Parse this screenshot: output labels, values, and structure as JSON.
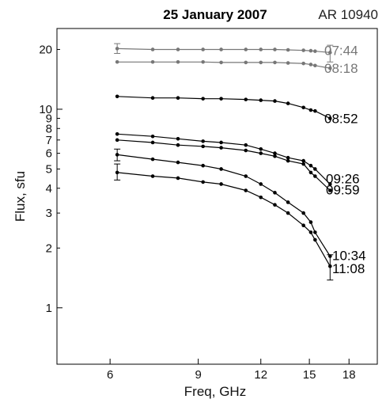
{
  "chart_data": {
    "type": "line",
    "title": "25 January 2007",
    "annotation": "AR 10940",
    "xlabel": "Freq, GHz",
    "ylabel": "Flux, sfu",
    "xscale": "log",
    "yscale": "log",
    "xlim": [
      4.7,
      20.5
    ],
    "ylim": [
      0.52,
      25.5
    ],
    "xticks": [
      6,
      9,
      12,
      15,
      18
    ],
    "xtick_labels": [
      "6",
      "9",
      "12",
      "15",
      "18"
    ],
    "yticks": [
      1,
      2,
      3,
      4,
      5,
      6,
      7,
      8,
      9,
      10,
      20
    ],
    "ytick_labels": [
      "1",
      "2",
      "3",
      "4",
      "5",
      "6",
      "7",
      "8",
      "9",
      "10",
      "20"
    ],
    "grid": false,
    "x": [
      6.2,
      7.3,
      8.2,
      9.2,
      10.0,
      11.2,
      12.0,
      12.8,
      13.6,
      14.6,
      15.1,
      15.4,
      16.5
    ],
    "series": [
      {
        "name": "07:44",
        "color": "#777777",
        "values": [
          20.2,
          20.0,
          20.0,
          20.0,
          20.0,
          20.0,
          20.0,
          20.0,
          19.9,
          19.8,
          19.7,
          19.6,
          19.3
        ],
        "errorbars": [
          {
            "index": 0,
            "low": 19.1,
            "high": 21.4
          },
          {
            "index": 12,
            "low": 17.3,
            "high": 21.0
          }
        ]
      },
      {
        "name": "08:18",
        "color": "#777777",
        "values": [
          17.3,
          17.3,
          17.3,
          17.3,
          17.2,
          17.2,
          17.2,
          17.2,
          17.1,
          17.0,
          16.8,
          16.6,
          16.1
        ],
        "errorbars": []
      },
      {
        "name": "08:52",
        "color": "#000000",
        "values": [
          11.6,
          11.4,
          11.4,
          11.3,
          11.3,
          11.2,
          11.1,
          11.0,
          10.7,
          10.2,
          9.9,
          9.8,
          9.0
        ],
        "errorbars": []
      },
      {
        "name": "09:26",
        "color": "#000000",
        "values": [
          7.5,
          7.3,
          7.1,
          6.9,
          6.8,
          6.6,
          6.3,
          6.0,
          5.7,
          5.5,
          5.2,
          5.0,
          4.2
        ],
        "errorbars": []
      },
      {
        "name": "09:59",
        "color": "#000000",
        "values": [
          7.0,
          6.8,
          6.6,
          6.5,
          6.4,
          6.2,
          6.0,
          5.8,
          5.5,
          5.3,
          4.8,
          4.6,
          3.9
        ],
        "errorbars": []
      },
      {
        "name": "10:34",
        "color": "#000000",
        "values": [
          5.9,
          5.6,
          5.4,
          5.2,
          5.0,
          4.6,
          4.2,
          3.8,
          3.4,
          3.0,
          2.7,
          2.4,
          1.82
        ],
        "errorbars": [
          {
            "index": 0,
            "low": 5.5,
            "high": 6.3
          }
        ]
      },
      {
        "name": "11:08",
        "color": "#000000",
        "values": [
          4.8,
          4.6,
          4.5,
          4.3,
          4.2,
          3.9,
          3.6,
          3.3,
          3.0,
          2.6,
          2.4,
          2.2,
          1.62
        ],
        "errorbars": [
          {
            "index": 0,
            "low": 4.4,
            "high": 5.3
          },
          {
            "index": 12,
            "low": 1.38,
            "high": 1.85
          }
        ]
      }
    ]
  }
}
